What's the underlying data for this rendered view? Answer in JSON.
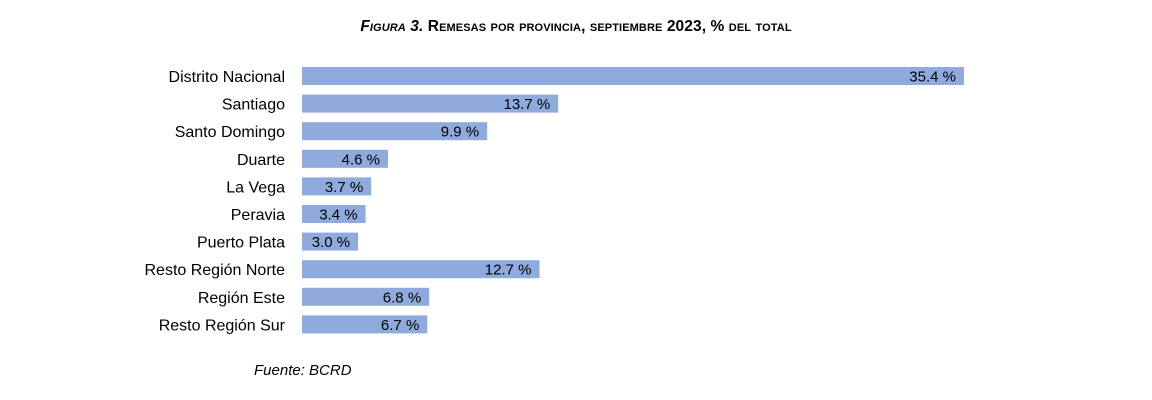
{
  "title_prefix": "Figura 3.",
  "title_text": "Remesas por provincia, septiembre 2023, % del total",
  "source": "Fuente: BCRD",
  "chart_data": {
    "type": "bar",
    "orientation": "horizontal",
    "categories": [
      "Distrito Nacional",
      "Santiago",
      "Santo Domingo",
      "Duarte",
      "La Vega",
      "Peravia",
      "Puerto Plata",
      "Resto Región Norte",
      "Región Este",
      "Resto Región Sur"
    ],
    "values": [
      35.4,
      13.7,
      9.9,
      4.6,
      3.7,
      3.4,
      3.0,
      12.7,
      6.8,
      6.7
    ],
    "value_labels": [
      "35.4 %",
      "13.7 %",
      "9.9 %",
      "4.6 %",
      "3.7 %",
      "3.4 %",
      "3.0 %",
      "12.7 %",
      "6.8 %",
      "6.7 %"
    ],
    "unit": "%",
    "bar_color": "#8FAADC",
    "grid": false,
    "legend": "none"
  }
}
